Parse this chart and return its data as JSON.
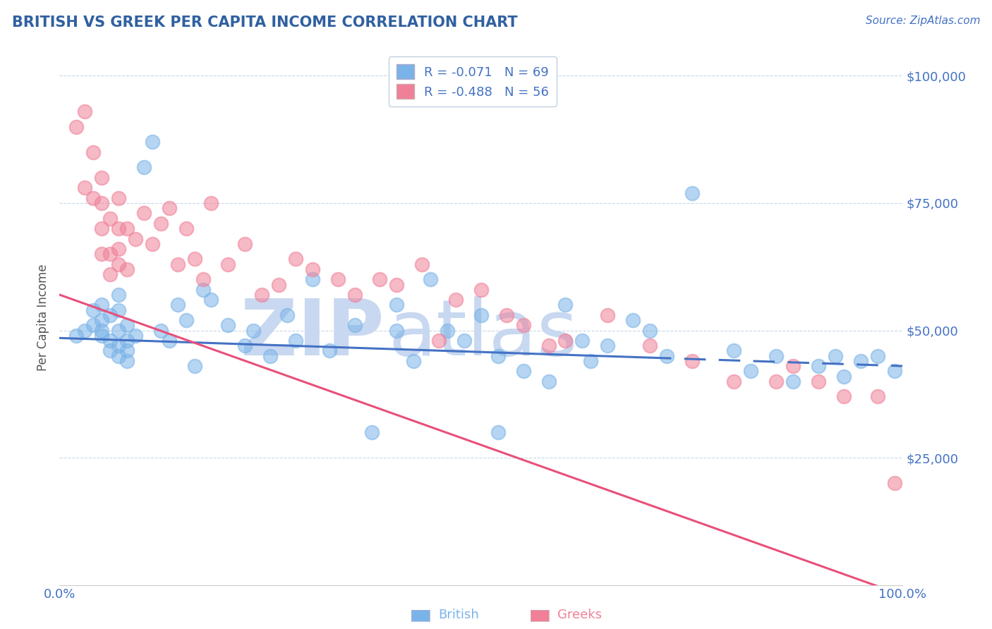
{
  "title": "BRITISH VS GREEK PER CAPITA INCOME CORRELATION CHART",
  "source_text": "Source: ZipAtlas.com",
  "ylabel": "Per Capita Income",
  "ytick_labels": [
    "$25,000",
    "$50,000",
    "$75,000",
    "$100,000"
  ],
  "ytick_values": [
    25000,
    50000,
    75000,
    100000
  ],
  "ylim": [
    0,
    105000
  ],
  "xlim": [
    0.0,
    1.0
  ],
  "legend_entries": [
    {
      "label": "R = -0.071   N = 69",
      "color": "#a8c8f0"
    },
    {
      "label": "R = -0.488   N = 56",
      "color": "#f5aec0"
    }
  ],
  "british_color": "#7ab3e8",
  "greek_color": "#f08098",
  "british_line_color": "#4472c4",
  "greek_line_color": "#e8507a",
  "title_color": "#3060a0",
  "axis_color": "#4472c4",
  "grid_color": "#c8d8e8",
  "watermark_zip_color": "#c8d8f0",
  "watermark_atlas_color": "#c8d8f0",
  "british_x": [
    0.02,
    0.03,
    0.04,
    0.04,
    0.05,
    0.05,
    0.05,
    0.05,
    0.06,
    0.06,
    0.06,
    0.07,
    0.07,
    0.07,
    0.07,
    0.07,
    0.08,
    0.08,
    0.08,
    0.08,
    0.09,
    0.1,
    0.11,
    0.12,
    0.13,
    0.14,
    0.15,
    0.16,
    0.17,
    0.18,
    0.2,
    0.22,
    0.23,
    0.25,
    0.27,
    0.28,
    0.3,
    0.32,
    0.35,
    0.37,
    0.4,
    0.4,
    0.42,
    0.44,
    0.46,
    0.48,
    0.5,
    0.52,
    0.52,
    0.55,
    0.58,
    0.6,
    0.62,
    0.63,
    0.65,
    0.68,
    0.7,
    0.72,
    0.75,
    0.8,
    0.82,
    0.85,
    0.87,
    0.9,
    0.92,
    0.93,
    0.95,
    0.97,
    0.99
  ],
  "british_y": [
    49000,
    50000,
    51000,
    54000,
    49000,
    50000,
    52000,
    55000,
    46000,
    48000,
    53000,
    45000,
    47000,
    50000,
    54000,
    57000,
    44000,
    46000,
    48000,
    51000,
    49000,
    82000,
    87000,
    50000,
    48000,
    55000,
    52000,
    43000,
    58000,
    56000,
    51000,
    47000,
    50000,
    45000,
    53000,
    48000,
    60000,
    46000,
    51000,
    30000,
    50000,
    55000,
    44000,
    60000,
    50000,
    48000,
    53000,
    45000,
    30000,
    42000,
    40000,
    55000,
    48000,
    44000,
    47000,
    52000,
    50000,
    45000,
    77000,
    46000,
    42000,
    45000,
    40000,
    43000,
    45000,
    41000,
    44000,
    45000,
    42000
  ],
  "greek_x": [
    0.02,
    0.03,
    0.03,
    0.04,
    0.04,
    0.05,
    0.05,
    0.05,
    0.05,
    0.06,
    0.06,
    0.06,
    0.07,
    0.07,
    0.07,
    0.07,
    0.08,
    0.08,
    0.09,
    0.1,
    0.11,
    0.12,
    0.13,
    0.14,
    0.15,
    0.16,
    0.17,
    0.18,
    0.2,
    0.22,
    0.24,
    0.26,
    0.28,
    0.3,
    0.33,
    0.35,
    0.38,
    0.4,
    0.43,
    0.45,
    0.47,
    0.5,
    0.53,
    0.55,
    0.58,
    0.6,
    0.65,
    0.7,
    0.75,
    0.8,
    0.85,
    0.87,
    0.9,
    0.93,
    0.97,
    0.99
  ],
  "greek_y": [
    90000,
    93000,
    78000,
    85000,
    76000,
    65000,
    70000,
    75000,
    80000,
    61000,
    65000,
    72000,
    63000,
    66000,
    70000,
    76000,
    62000,
    70000,
    68000,
    73000,
    67000,
    71000,
    74000,
    63000,
    70000,
    64000,
    60000,
    75000,
    63000,
    67000,
    57000,
    59000,
    64000,
    62000,
    60000,
    57000,
    60000,
    59000,
    63000,
    48000,
    56000,
    58000,
    53000,
    51000,
    47000,
    48000,
    53000,
    47000,
    44000,
    40000,
    40000,
    43000,
    40000,
    37000,
    37000,
    20000
  ],
  "british_line_y_at_0": 48500,
  "british_line_y_at_1": 43000,
  "british_cutoff": 0.7,
  "greek_line_y_at_0": 57000,
  "greek_line_y_at_1": -2000
}
